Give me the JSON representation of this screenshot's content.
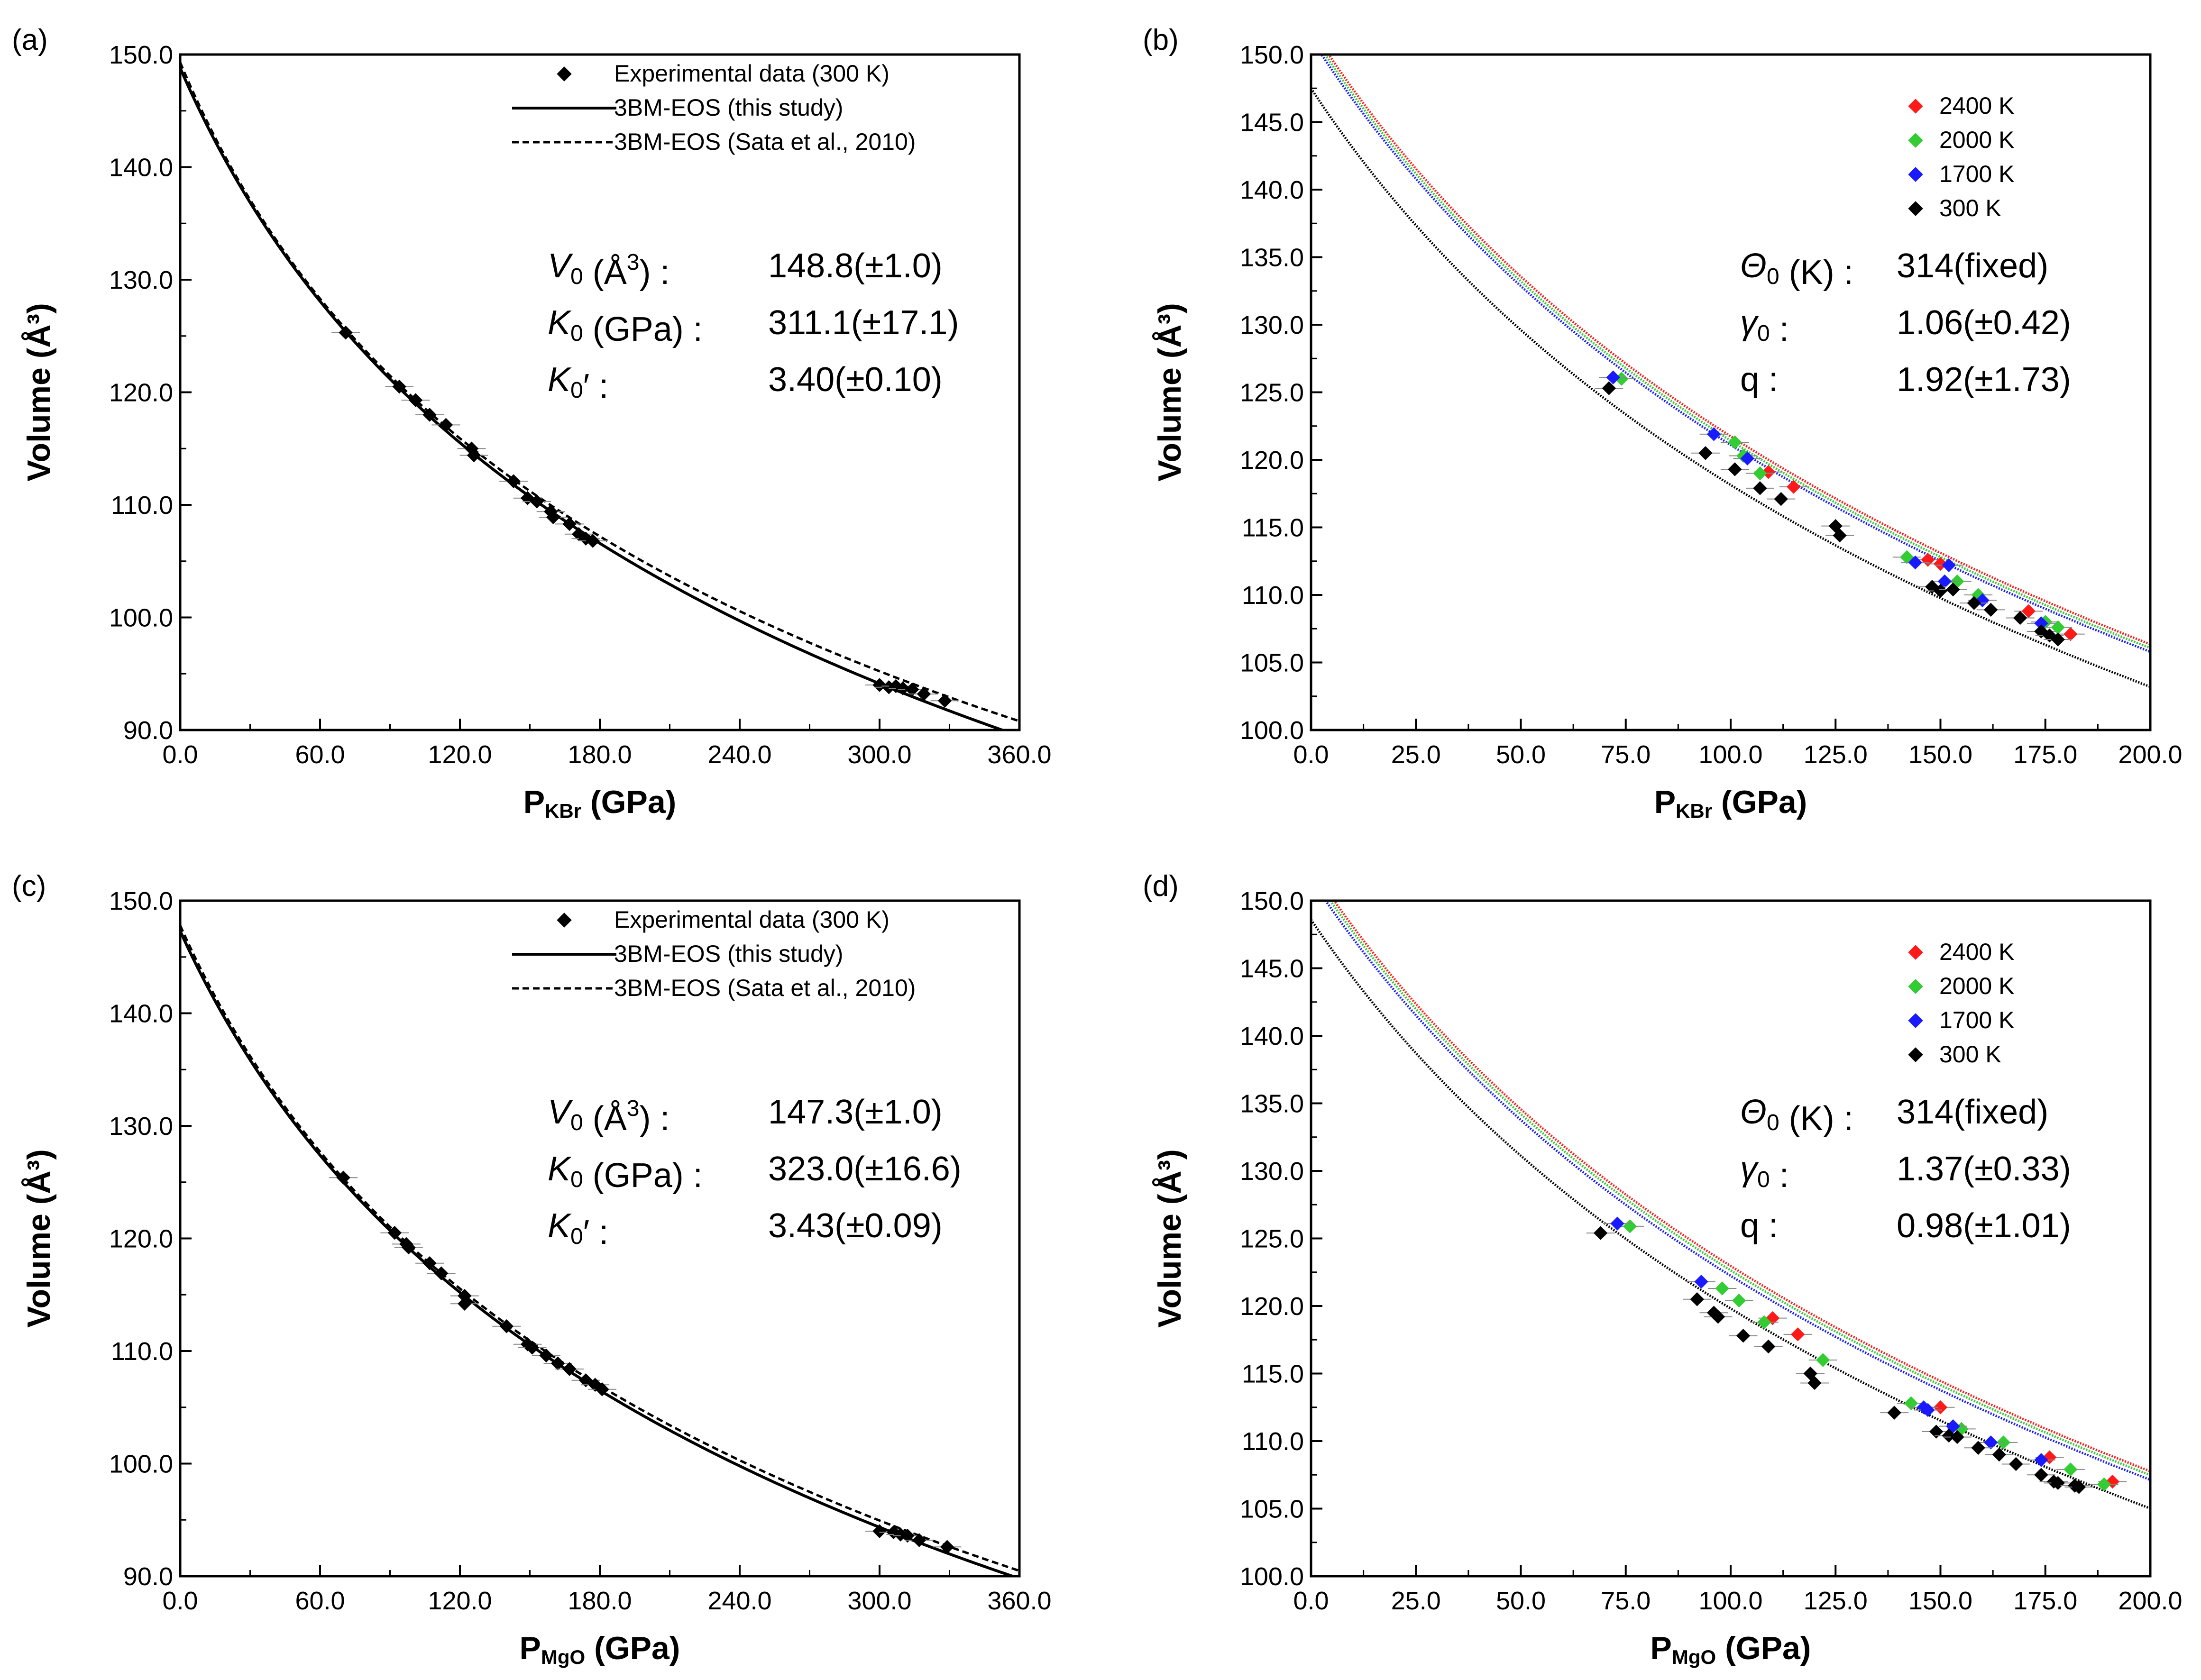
{
  "figure_title": "",
  "chart_data": [
    {
      "panel": "(a)",
      "type": "scatter",
      "title": "",
      "xlabel": "P",
      "xlabel_sub": "KBr",
      "xlabel_unit": " (GPa)",
      "ylabel": "Volume (Å³)",
      "xlim": [
        0,
        360
      ],
      "ylim": [
        90,
        150
      ],
      "xticks": [
        0,
        60,
        120,
        180,
        240,
        300,
        360
      ],
      "xtick_labels": [
        "0.0",
        "60.0",
        "120.0",
        "180.0",
        "240.0",
        "300.0",
        "360.0"
      ],
      "yticks": [
        90,
        100,
        110,
        120,
        130,
        140,
        150
      ],
      "ytick_labels": [
        "90.0",
        "100.0",
        "110.0",
        "120.0",
        "130.0",
        "140.0",
        "150.0"
      ],
      "grid": false,
      "legend": [
        "Experimental data (300 K)",
        "3BM-EOS (this study)",
        "3BM-EOS (Sata et al., 2010)"
      ],
      "legend_position": "top-right",
      "series": [
        {
          "name": "Experimental data (300 K)",
          "kind": "points",
          "color": "#000000",
          "x": [
            71,
            94,
            101,
            107,
            114,
            125,
            126,
            143,
            149,
            153,
            159,
            160,
            167,
            171,
            174,
            177,
            300,
            304,
            307,
            310,
            314,
            319,
            328
          ],
          "y": [
            125.3,
            120.5,
            119.3,
            118.0,
            117.1,
            115.0,
            114.4,
            112.1,
            110.6,
            110.3,
            109.4,
            108.9,
            108.3,
            107.4,
            107.0,
            106.8,
            94.0,
            93.8,
            93.9,
            93.7,
            93.6,
            93.2,
            92.6
          ]
        },
        {
          "name": "3BM-EOS (this study)",
          "kind": "eos",
          "style": "solid",
          "V0": 148.8,
          "K0": 311.1,
          "K0p": 3.4,
          "Pmax": 360
        },
        {
          "name": "3BM-EOS (Sata et al., 2010)",
          "kind": "eos",
          "style": "dashed",
          "V0": 149.3,
          "K0": 302.0,
          "K0p": 3.6,
          "Pmax": 360
        }
      ],
      "params": [
        {
          "sym": "V",
          "sub": "0",
          "rest": " (Å",
          "sup": "3",
          "close": ") :",
          "value": "148.8(±1.0)"
        },
        {
          "sym": "K",
          "sub": "0",
          "rest": " (GPa) :",
          "sup": "",
          "close": "",
          "value": "311.1(±17.1)"
        },
        {
          "sym": "K",
          "sub": "0",
          "rest": "′ :",
          "sup": "",
          "close": "",
          "value": "3.40(±0.10)"
        }
      ]
    },
    {
      "panel": "(b)",
      "type": "scatter",
      "title": "",
      "xlabel": "P",
      "xlabel_sub": "KBr",
      "xlabel_unit": " (GPa)",
      "ylabel": "Volume (Å³)",
      "xlim": [
        0,
        200
      ],
      "ylim": [
        100,
        150
      ],
      "xticks": [
        0,
        25,
        50,
        75,
        100,
        125,
        150,
        175,
        200
      ],
      "xtick_labels": [
        "0.0",
        "25.0",
        "50.0",
        "75.0",
        "100.0",
        "125.0",
        "150.0",
        "175.0",
        "200.0"
      ],
      "yticks": [
        100,
        105,
        110,
        115,
        120,
        125,
        130,
        135,
        140,
        145,
        150
      ],
      "ytick_labels": [
        "100.0",
        "105.0",
        "110.0",
        "115.0",
        "120.0",
        "125.0",
        "130.0",
        "135.0",
        "140.0",
        "145.0",
        "150.0"
      ],
      "grid": false,
      "legend": [
        "2400 K",
        "2000 K",
        "1700 K",
        "300 K"
      ],
      "legend_position": "top-right",
      "series": [
        {
          "name": "2400 K",
          "kind": "points",
          "color": "#ff1a1a",
          "x": [
            109,
            115,
            147,
            150,
            171,
            181
          ],
          "y": [
            119.1,
            118.0,
            112.6,
            112.3,
            108.8,
            107.1
          ]
        },
        {
          "name": "2000 K",
          "kind": "points",
          "color": "#33cc33",
          "x": [
            74,
            101,
            103,
            107,
            142,
            154,
            159,
            175,
            178
          ],
          "y": [
            126.0,
            121.3,
            120.3,
            119.0,
            112.8,
            111.0,
            110.0,
            108.0,
            107.6
          ]
        },
        {
          "name": "1700 K",
          "kind": "points",
          "color": "#1a1aff",
          "x": [
            72,
            96,
            104,
            144,
            151,
            152,
            160,
            174
          ],
          "y": [
            126.1,
            121.9,
            120.1,
            112.4,
            111.0,
            112.2,
            109.6,
            107.9
          ]
        },
        {
          "name": "300 K",
          "kind": "points",
          "color": "#000000",
          "x": [
            71,
            94,
            101,
            107,
            112,
            125,
            126,
            148,
            150,
            153,
            158,
            162,
            169,
            174,
            176,
            178
          ],
          "y": [
            125.3,
            120.5,
            119.3,
            117.9,
            117.1,
            115.1,
            114.4,
            110.6,
            110.3,
            110.4,
            109.4,
            108.9,
            108.3,
            107.3,
            107.0,
            106.7
          ]
        },
        {
          "name": "2400 K fit",
          "kind": "eos",
          "color": "#ff1a1a",
          "style": "dotted",
          "V0": 152.0,
          "K0": 311.1,
          "K0p": 3.4,
          "Pmax": 200
        },
        {
          "name": "2000 K fit",
          "kind": "eos",
          "color": "#33cc33",
          "style": "dotted",
          "V0": 151.6,
          "K0": 311.1,
          "K0p": 3.4,
          "Pmax": 200
        },
        {
          "name": "1700 K fit",
          "kind": "eos",
          "color": "#1a1aff",
          "style": "dotted",
          "V0": 151.2,
          "K0": 311.1,
          "K0p": 3.4,
          "Pmax": 200
        },
        {
          "name": "300 K fit",
          "kind": "eos",
          "color": "#000000",
          "style": "dotted",
          "V0": 147.5,
          "K0": 311.1,
          "K0p": 3.4,
          "Pmax": 200
        }
      ],
      "params": [
        {
          "sym": "Θ",
          "sub": "0",
          "rest": " (K) :",
          "sup": "",
          "close": "",
          "value": "314(fixed)"
        },
        {
          "sym": "γ",
          "sub": "0",
          "rest": " :",
          "sup": "",
          "close": "",
          "value": "1.06(±0.42)"
        },
        {
          "sym": "",
          "sub": "",
          "rest": "q :",
          "sup": "",
          "close": "",
          "value": "1.92(±1.73)"
        }
      ]
    },
    {
      "panel": "(c)",
      "type": "scatter",
      "title": "",
      "xlabel": "P",
      "xlabel_sub": "MgO",
      "xlabel_unit": " (GPa)",
      "ylabel": "Volume (Å³)",
      "xlim": [
        0,
        360
      ],
      "ylim": [
        90,
        150
      ],
      "xticks": [
        0,
        60,
        120,
        180,
        240,
        300,
        360
      ],
      "xtick_labels": [
        "0.0",
        "60.0",
        "120.0",
        "180.0",
        "240.0",
        "300.0",
        "360.0"
      ],
      "yticks": [
        90,
        100,
        110,
        120,
        130,
        140,
        150
      ],
      "ytick_labels": [
        "90.0",
        "100.0",
        "110.0",
        "120.0",
        "130.0",
        "140.0",
        "150.0"
      ],
      "grid": false,
      "legend": [
        "Experimental data (300 K)",
        "3BM-EOS (this study)",
        "3BM-EOS (Sata et al., 2010)"
      ],
      "legend_position": "top-right",
      "series": [
        {
          "name": "Experimental data (300 K)",
          "kind": "points",
          "color": "#000000",
          "x": [
            70,
            92,
            97,
            98,
            107,
            112,
            122,
            122,
            140,
            149,
            151,
            157,
            162,
            167,
            174,
            178,
            181,
            300,
            306,
            309,
            312,
            317,
            329
          ],
          "y": [
            125.4,
            120.5,
            119.5,
            119.2,
            117.8,
            116.9,
            114.9,
            114.2,
            112.2,
            110.6,
            110.3,
            109.6,
            108.9,
            108.4,
            107.4,
            107.0,
            106.6,
            94.0,
            93.9,
            93.7,
            93.6,
            93.2,
            92.6
          ]
        },
        {
          "name": "3BM-EOS (this study)",
          "kind": "eos",
          "style": "solid",
          "V0": 147.3,
          "K0": 323.0,
          "K0p": 3.43,
          "Pmax": 360
        },
        {
          "name": "3BM-EOS (Sata et al., 2010)",
          "kind": "eos",
          "style": "dashed",
          "V0": 147.8,
          "K0": 318.0,
          "K0p": 3.52,
          "Pmax": 360
        }
      ],
      "params": [
        {
          "sym": "V",
          "sub": "0",
          "rest": " (Å",
          "sup": "3",
          "close": ") :",
          "value": "147.3(±1.0)"
        },
        {
          "sym": "K",
          "sub": "0",
          "rest": " (GPa) :",
          "sup": "",
          "close": "",
          "value": "323.0(±16.6)"
        },
        {
          "sym": "K",
          "sub": "0",
          "rest": "′ :",
          "sup": "",
          "close": "",
          "value": "3.43(±0.09)"
        }
      ]
    },
    {
      "panel": "(d)",
      "type": "scatter",
      "title": "",
      "xlabel": "P",
      "xlabel_sub": "MgO",
      "xlabel_unit": " (GPa)",
      "ylabel": "Volume (Å³)",
      "xlim": [
        0,
        200
      ],
      "ylim": [
        100,
        150
      ],
      "xticks": [
        0,
        25,
        50,
        75,
        100,
        125,
        150,
        175,
        200
      ],
      "xtick_labels": [
        "0.0",
        "25.0",
        "50.0",
        "75.0",
        "100.0",
        "125.0",
        "150.0",
        "175.0",
        "200.0"
      ],
      "yticks": [
        100,
        105,
        110,
        115,
        120,
        125,
        130,
        135,
        140,
        145,
        150
      ],
      "ytick_labels": [
        "100.0",
        "105.0",
        "110.0",
        "115.0",
        "120.0",
        "125.0",
        "130.0",
        "135.0",
        "140.0",
        "145.0",
        "150.0"
      ],
      "grid": false,
      "legend": [
        "2400 K",
        "2000 K",
        "1700 K",
        "300 K"
      ],
      "legend_position": "top-right",
      "series": [
        {
          "name": "2400 K",
          "kind": "points",
          "color": "#ff1a1a",
          "x": [
            110,
            116,
            150,
            176,
            191
          ],
          "y": [
            119.1,
            117.9,
            112.5,
            108.8,
            107.0
          ]
        },
        {
          "name": "2000 K",
          "kind": "points",
          "color": "#33cc33",
          "x": [
            76,
            98,
            102,
            108,
            122,
            143,
            155,
            165,
            181,
            189
          ],
          "y": [
            125.9,
            121.3,
            120.4,
            118.8,
            116.0,
            112.8,
            110.9,
            109.9,
            107.9,
            106.8
          ]
        },
        {
          "name": "1700 K",
          "kind": "points",
          "color": "#1a1aff",
          "x": [
            73,
            93,
            146,
            147,
            153,
            162,
            174
          ],
          "y": [
            126.1,
            121.8,
            112.5,
            112.3,
            111.1,
            109.9,
            108.6
          ]
        },
        {
          "name": "300 K",
          "kind": "points",
          "color": "#000000",
          "x": [
            69,
            92,
            96,
            97,
            103,
            109,
            119,
            120,
            139,
            149,
            152,
            154,
            159,
            164,
            168,
            174,
            177,
            178,
            182,
            183
          ],
          "y": [
            125.4,
            120.5,
            119.5,
            119.2,
            117.8,
            117.0,
            115.0,
            114.3,
            112.1,
            110.7,
            110.4,
            110.3,
            109.5,
            109.0,
            108.3,
            107.5,
            107.0,
            106.9,
            106.7,
            106.6
          ]
        },
        {
          "name": "2400 K fit",
          "kind": "eos",
          "color": "#ff1a1a",
          "style": "dotted",
          "V0": 152.5,
          "K0": 323.0,
          "K0p": 3.43,
          "Pmax": 200
        },
        {
          "name": "2000 K fit",
          "kind": "eos",
          "color": "#33cc33",
          "style": "dotted",
          "V0": 152.1,
          "K0": 323.0,
          "K0p": 3.43,
          "Pmax": 200
        },
        {
          "name": "1700 K fit",
          "kind": "eos",
          "color": "#1a1aff",
          "style": "dotted",
          "V0": 151.6,
          "K0": 323.0,
          "K0p": 3.43,
          "Pmax": 200
        },
        {
          "name": "300 K fit",
          "kind": "eos",
          "color": "#000000",
          "style": "dotted",
          "V0": 148.6,
          "K0": 323.0,
          "K0p": 3.43,
          "Pmax": 200
        }
      ],
      "params": [
        {
          "sym": "Θ",
          "sub": "0",
          "rest": " (K) :",
          "sup": "",
          "close": "",
          "value": "314(fixed)"
        },
        {
          "sym": "γ",
          "sub": "0",
          "rest": " :",
          "sup": "",
          "close": "",
          "value": "1.37(±0.33)"
        },
        {
          "sym": "",
          "sub": "",
          "rest": "q :",
          "sup": "",
          "close": "",
          "value": "0.98(±1.01)"
        }
      ]
    }
  ]
}
